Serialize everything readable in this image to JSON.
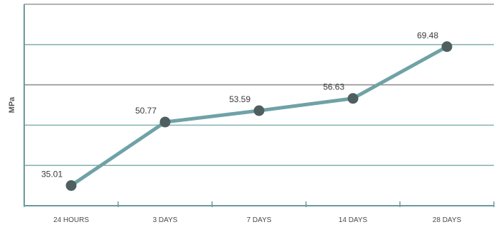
{
  "chart_data": {
    "type": "line",
    "title": "",
    "xlabel": "",
    "ylabel": "MPa",
    "categories": [
      "24 HOURS",
      "3 DAYS",
      "7 DAYS",
      "14 DAYS",
      "28 DAYS"
    ],
    "series": [
      {
        "values": [
          35.01,
          50.77,
          53.59,
          56.63,
          69.48
        ]
      }
    ],
    "data_labels": [
      "35.01",
      "50.77",
      "53.59",
      "56.63",
      "69.48"
    ],
    "ylim": [
      30,
      80
    ],
    "grid": true,
    "y_tick_labels_shown": false,
    "legend": "none",
    "colors": {
      "line": "#6fa2a6",
      "marker": "#4f5f5f",
      "grid": "#8bb5b5",
      "axis": "#6a9a9c",
      "top_grid": "#999999"
    }
  }
}
